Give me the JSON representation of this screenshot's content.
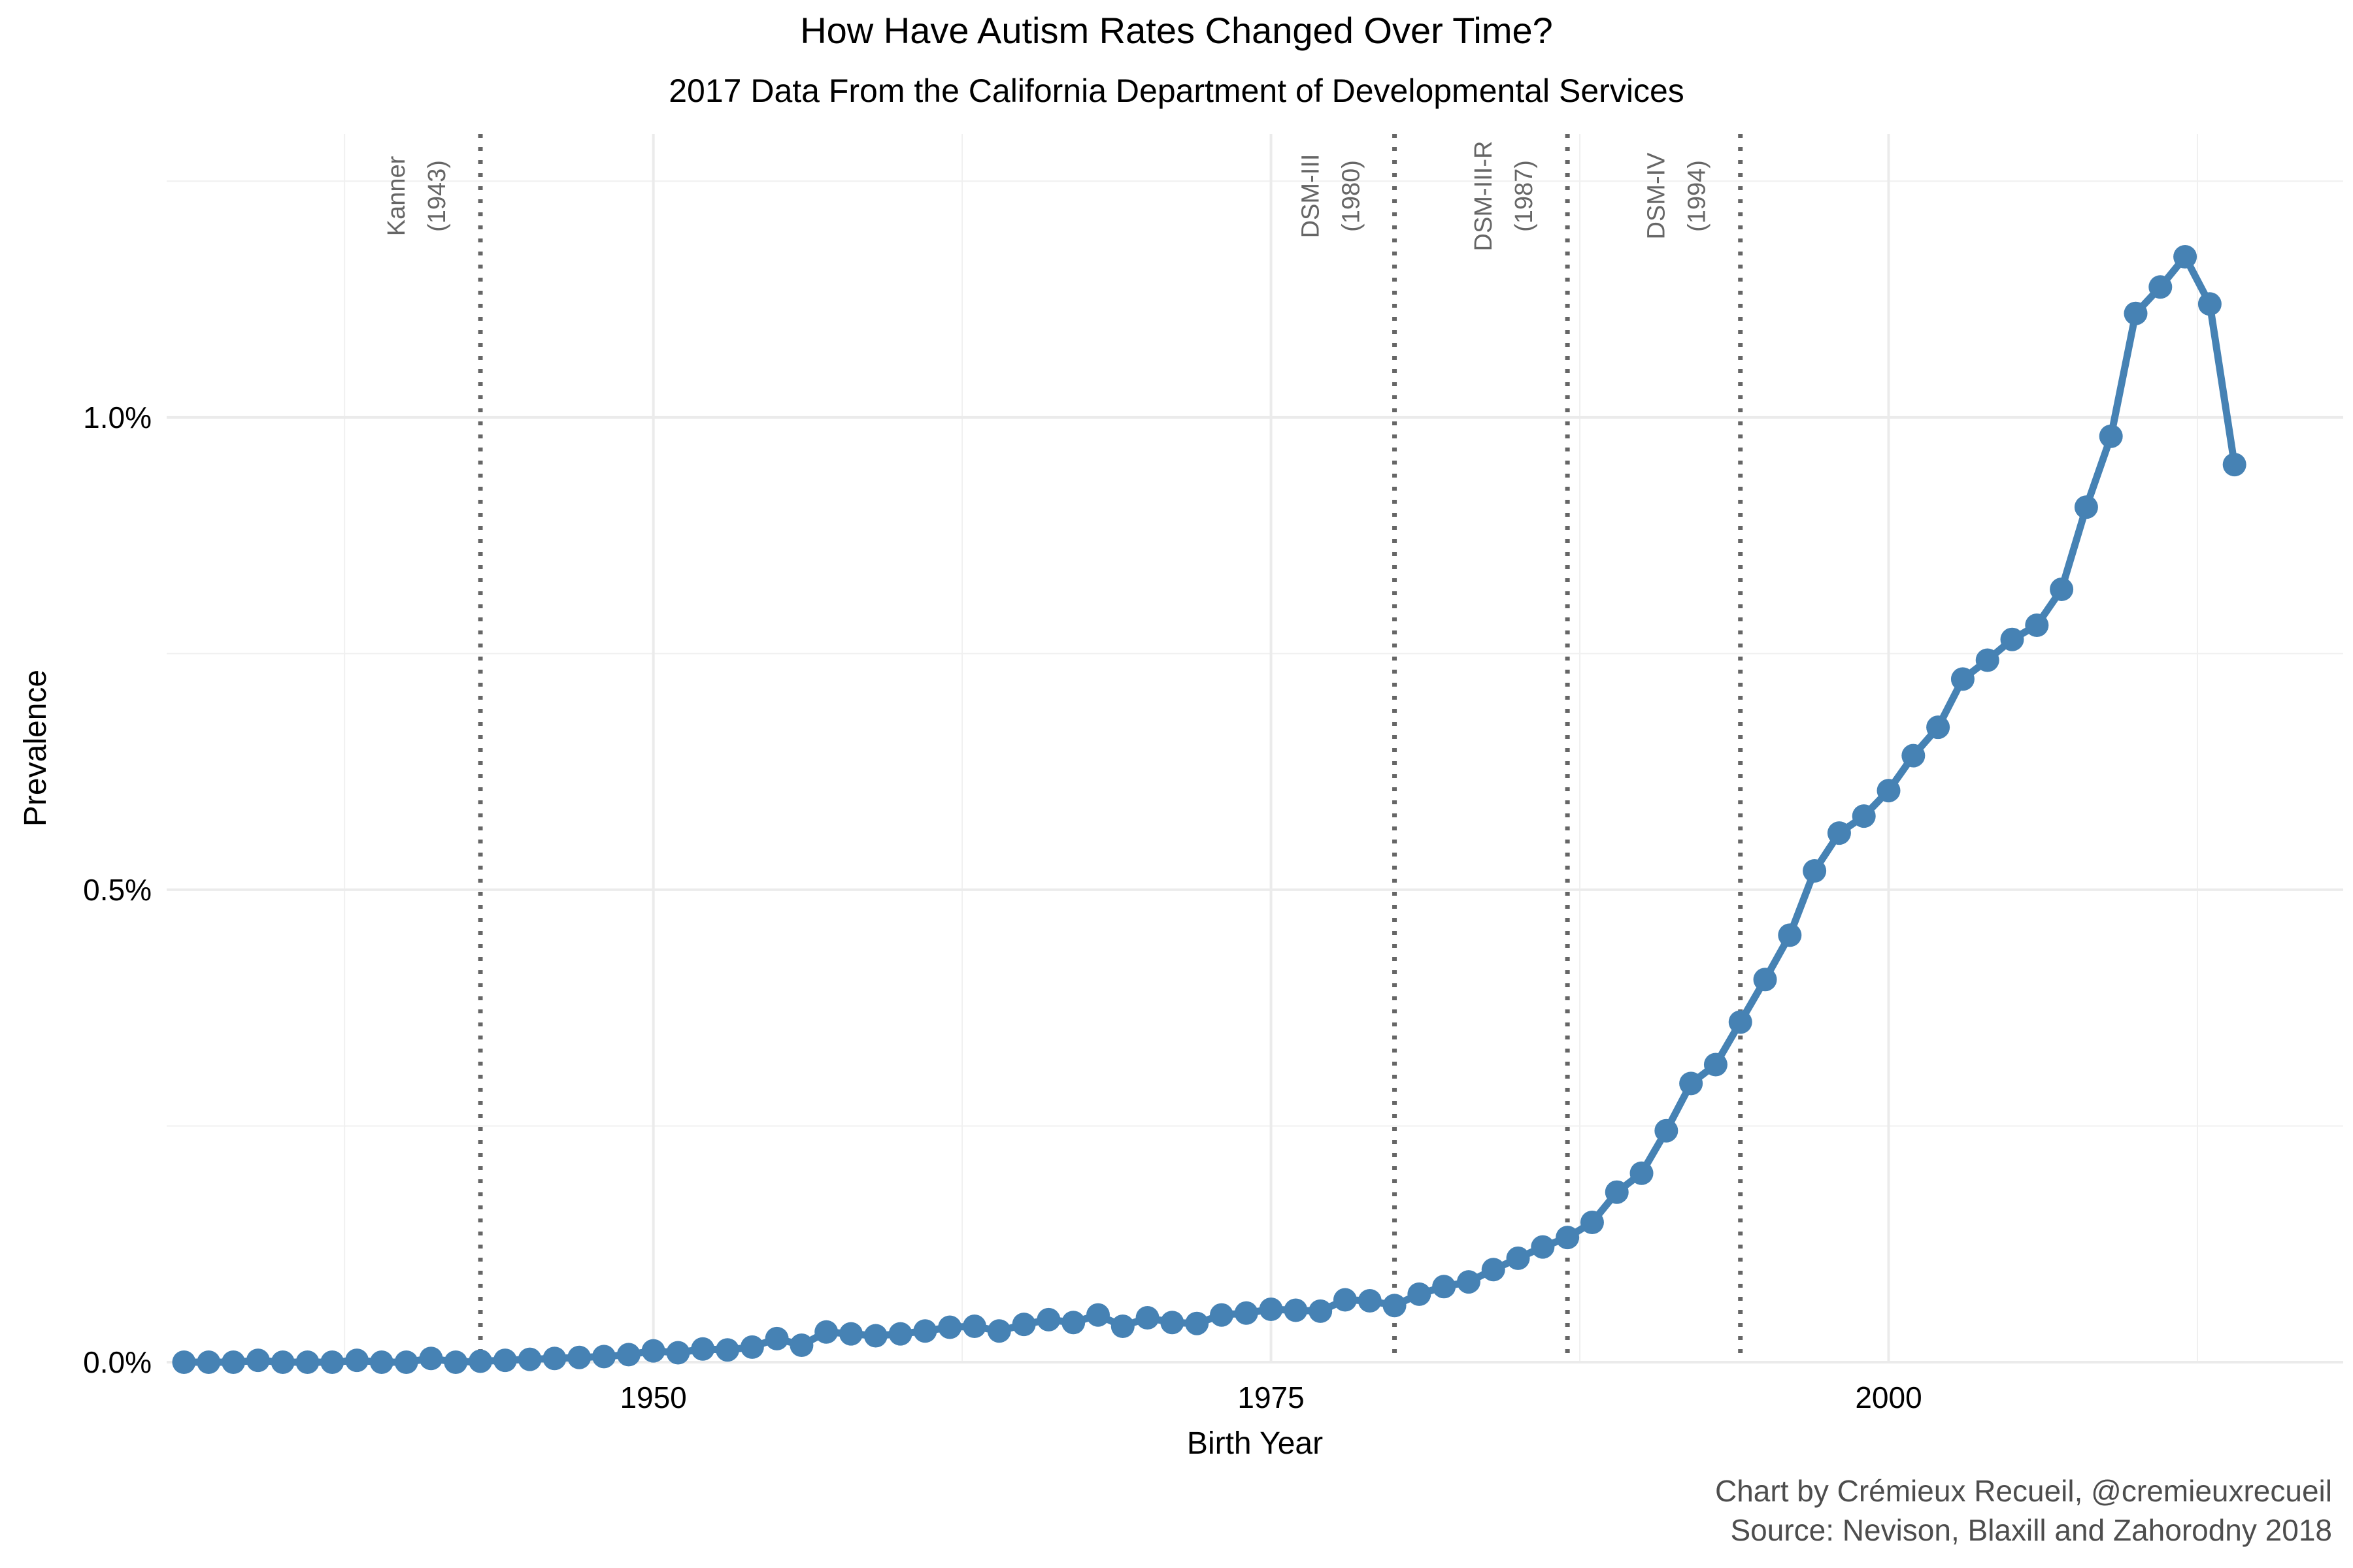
{
  "chart_data": {
    "type": "line",
    "title": "How Have Autism Rates Changed Over Time?",
    "subtitle": "2017 Data From the California Department of Developmental Services",
    "xlabel": "Birth Year",
    "ylabel": "Prevalence",
    "xlim": [
      1930.3,
      2018.4
    ],
    "ylim": [
      0,
      1.3
    ],
    "x_ticks": [
      1950,
      1975,
      2000
    ],
    "x_tick_labels": [
      "1950",
      "1975",
      "2000"
    ],
    "x_minor_ticks": [
      1937.5,
      1962.5,
      1987.5,
      2012.5
    ],
    "y_ticks": [
      0,
      0.5,
      1.0
    ],
    "y_tick_labels": [
      "0.0%",
      "0.5%",
      "1.0%"
    ],
    "y_minor_ticks": [
      0.25,
      0.75,
      1.25
    ],
    "grid": true,
    "legend": "none",
    "line_color": "#4682B4",
    "annotation_color": "#666666",
    "vlines": [
      {
        "x": 1943,
        "label_line1": "Kanner",
        "label_line2": "(1943)"
      },
      {
        "x": 1980,
        "label_line1": "DSM-III",
        "label_line2": "(1980)"
      },
      {
        "x": 1987,
        "label_line1": "DSM-III-R",
        "label_line2": "(1987)"
      },
      {
        "x": 1994,
        "label_line1": "DSM-IV",
        "label_line2": "(1994)"
      }
    ],
    "x": [
      1931,
      1932,
      1933,
      1934,
      1935,
      1936,
      1937,
      1938,
      1939,
      1940,
      1941,
      1942,
      1943,
      1944,
      1945,
      1946,
      1947,
      1948,
      1949,
      1950,
      1951,
      1952,
      1953,
      1954,
      1955,
      1956,
      1957,
      1958,
      1959,
      1960,
      1961,
      1962,
      1963,
      1964,
      1965,
      1966,
      1967,
      1968,
      1969,
      1970,
      1971,
      1972,
      1973,
      1974,
      1975,
      1976,
      1977,
      1978,
      1979,
      1980,
      1981,
      1982,
      1983,
      1984,
      1985,
      1986,
      1987,
      1988,
      1989,
      1990,
      1991,
      1992,
      1993,
      1994,
      1995,
      1996,
      1997,
      1998,
      1999,
      2000,
      2001,
      2002,
      2003,
      2004,
      2005,
      2006,
      2007,
      2008,
      2009,
      2010,
      2011,
      2012,
      2013,
      2014
    ],
    "values": [
      0.0,
      0.0,
      0.0,
      0.002,
      0.0,
      0.0,
      0.0,
      0.002,
      0.0,
      0.0,
      0.004,
      0.0,
      0.001,
      0.002,
      0.003,
      0.004,
      0.005,
      0.006,
      0.008,
      0.012,
      0.01,
      0.014,
      0.013,
      0.016,
      0.025,
      0.018,
      0.032,
      0.03,
      0.028,
      0.03,
      0.033,
      0.037,
      0.038,
      0.033,
      0.04,
      0.045,
      0.042,
      0.05,
      0.038,
      0.047,
      0.042,
      0.041,
      0.05,
      0.052,
      0.056,
      0.055,
      0.054,
      0.066,
      0.065,
      0.06,
      0.072,
      0.08,
      0.085,
      0.098,
      0.11,
      0.122,
      0.132,
      0.148,
      0.18,
      0.2,
      0.245,
      0.295,
      0.315,
      0.36,
      0.405,
      0.452,
      0.52,
      0.56,
      0.578,
      0.605,
      0.642,
      0.672,
      0.723,
      0.743,
      0.765,
      0.78,
      0.818,
      0.905,
      0.98,
      1.11,
      1.138,
      1.17,
      1.12,
      0.95
    ]
  },
  "caption": {
    "line1": "Chart by Crémieux Recueil, @cremieuxrecueil",
    "line2": "Source: Nevison, Blaxill and Zahorodny 2018"
  }
}
